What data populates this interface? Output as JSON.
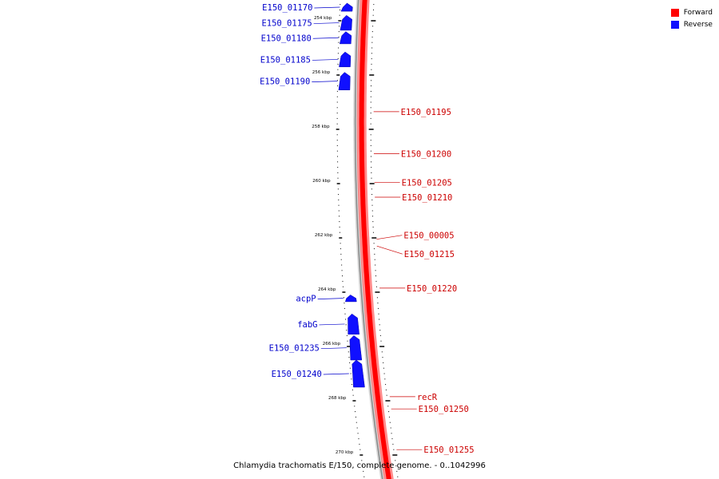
{
  "legend": {
    "forward_label": "Forward",
    "reverse_label": "Reverse",
    "forward_color": "#ff0000",
    "reverse_color": "#1010ff"
  },
  "caption": "Chlamydia trachomatis E/150, complete genome. - 0..1042996",
  "colors": {
    "forward_track": "#ff0000",
    "forward_label": "#cc0000",
    "reverse_feature": "#1010ff",
    "reverse_label": "#0000cc",
    "backbone": "#888888",
    "ticks": "#000000"
  },
  "scale": {
    "unit": "kbp",
    "range_kbp": [
      253,
      271
    ],
    "major_ticks_kbp": [
      254,
      256,
      258,
      260,
      262,
      264,
      266,
      268,
      270
    ],
    "minor_tick_interval_kbp": 0.2
  },
  "reverse_features": [
    {
      "label": "E150_01170",
      "start_kbp": 253.35,
      "end_kbp": 253.65
    },
    {
      "label": "E150_01175",
      "start_kbp": 253.8,
      "end_kbp": 254.35
    },
    {
      "label": "E150_01180",
      "start_kbp": 254.4,
      "end_kbp": 254.85
    },
    {
      "label": "E150_01185",
      "start_kbp": 255.15,
      "end_kbp": 255.7
    },
    {
      "label": "E150_01190",
      "start_kbp": 255.9,
      "end_kbp": 256.55
    },
    {
      "label": "acpP",
      "start_kbp": 264.1,
      "end_kbp": 264.35
    },
    {
      "label": "fabG",
      "start_kbp": 264.8,
      "end_kbp": 265.55
    },
    {
      "label": "E150_01235",
      "start_kbp": 265.6,
      "end_kbp": 266.5
    },
    {
      "label": "E150_01240",
      "start_kbp": 266.5,
      "end_kbp": 267.5
    }
  ],
  "forward_labels": [
    {
      "label": "E150_01195",
      "pos_kbp": 257.35
    },
    {
      "label": "E150_01200",
      "pos_kbp": 258.9
    },
    {
      "label": "E150_01205",
      "pos_kbp": 259.95
    },
    {
      "label": "E150_01210",
      "pos_kbp": 260.5
    },
    {
      "label": "E150_00005",
      "pos_kbp": 262.05
    },
    {
      "label": "E150_01215",
      "pos_kbp": 262.3
    },
    {
      "label": "E150_01220",
      "pos_kbp": 263.85
    },
    {
      "label": "recR",
      "pos_kbp": 267.85
    },
    {
      "label": "E150_01250",
      "pos_kbp": 268.3
    },
    {
      "label": "E150_01255",
      "pos_kbp": 269.8
    }
  ]
}
